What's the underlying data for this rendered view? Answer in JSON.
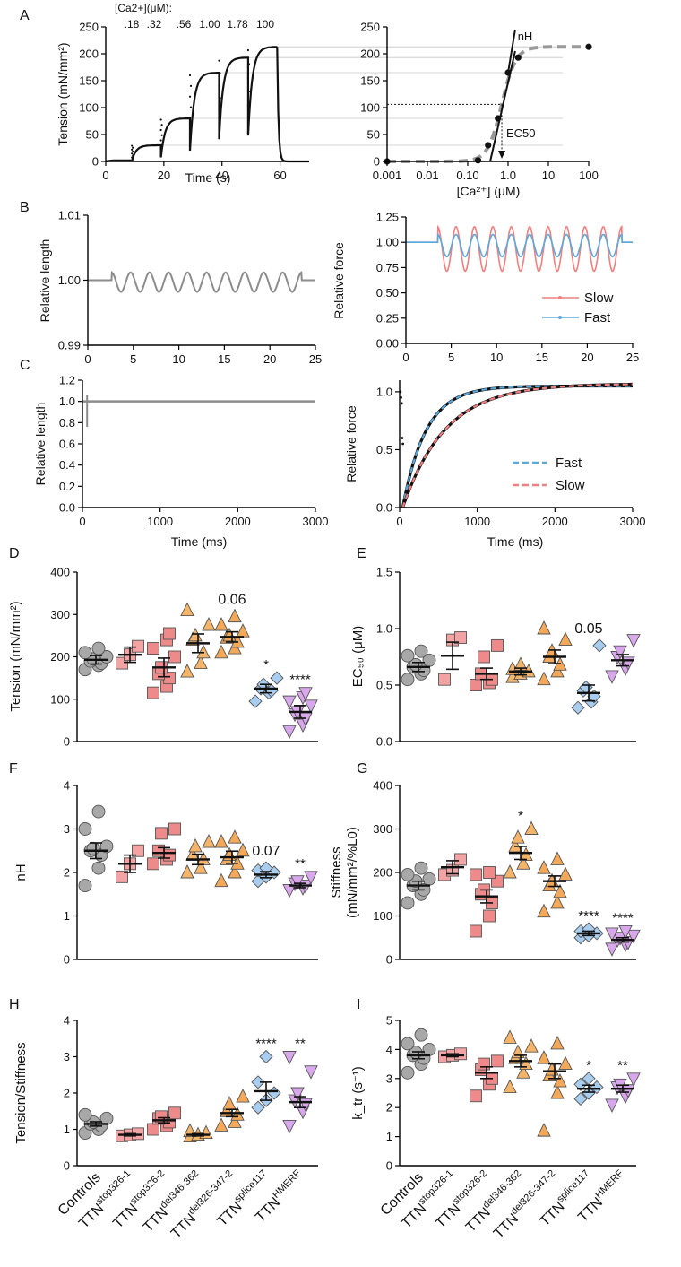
{
  "figure": {
    "panel_letters": [
      "A",
      "B",
      "C",
      "D",
      "E",
      "F",
      "G",
      "H",
      "I"
    ],
    "colors": {
      "control": "#a8a8a8",
      "stop1": "#f2a3a3",
      "stop2": "#ee8a8a",
      "del346": "#f4b56b",
      "del326": "#f3a85a",
      "splice": "#a9cdee",
      "hmerf": "#d9a8ec",
      "slow": "#f07f7f",
      "fast": "#5aa9dc",
      "gray_trace": "#8c8c8c",
      "ref_line": "#c6c6c6"
    }
  },
  "chart_data": [
    {
      "id": "A-left",
      "type": "line",
      "title": "",
      "xlabel": "Time (s)",
      "ylabel": "Tension (mN/mm²)",
      "xlim": [
        0,
        70
      ],
      "ylim": [
        0,
        250
      ],
      "xticks": [
        "0",
        "20",
        "40",
        "60"
      ],
      "yticks": [
        "0",
        "50",
        "100",
        "150",
        "200",
        "250"
      ],
      "annotation_header": "[Ca2+](μM):",
      "annotation_ca": [
        ".18",
        ".32",
        ".56",
        "1.00",
        "1.78",
        "100"
      ],
      "steps": [
        {
          "x0": 0,
          "x1": 9,
          "level": 2
        },
        {
          "x0": 9,
          "x1": 19,
          "level": 30
        },
        {
          "x0": 19,
          "x1": 29,
          "level": 80
        },
        {
          "x0": 29,
          "x1": 39,
          "level": 165
        },
        {
          "x0": 39,
          "x1": 49,
          "level": 193
        },
        {
          "x0": 49,
          "x1": 59,
          "level": 213
        },
        {
          "x0": 59,
          "x1": 70,
          "level": 0
        }
      ]
    },
    {
      "id": "A-right",
      "type": "line",
      "xlabel": "[Ca²⁺] (μM)",
      "ylabel": "",
      "xscale": "log",
      "xlim": [
        0.001,
        100
      ],
      "ylim": [
        0,
        250
      ],
      "xticks": [
        "0.001",
        "0.01",
        "0.10",
        "1.0",
        "10",
        "100"
      ],
      "yticks": [
        "0",
        "50",
        "100",
        "150",
        "200",
        "250"
      ],
      "points": [
        {
          "x": 0.001,
          "y": 0
        },
        {
          "x": 0.18,
          "y": 2
        },
        {
          "x": 0.32,
          "y": 30
        },
        {
          "x": 0.56,
          "y": 80
        },
        {
          "x": 1.0,
          "y": 165
        },
        {
          "x": 1.78,
          "y": 193
        },
        {
          "x": 100,
          "y": 213
        }
      ],
      "labels": {
        "nh": "nH",
        "ec50": "EC50"
      },
      "ec50": 0.7,
      "half_max": 106
    },
    {
      "id": "B-left",
      "type": "line",
      "xlabel": "",
      "ylabel": "Relative length",
      "xlim": [
        0,
        25
      ],
      "ylim": [
        0.99,
        1.01
      ],
      "xticks": [
        "0",
        "5",
        "10",
        "15",
        "20",
        "25"
      ],
      "yticks": [
        "0.99",
        "1.00",
        "1.01"
      ],
      "sine": {
        "start": 2.6,
        "end": 23.5,
        "cycles": 10,
        "amplitude": 0.0015,
        "base": 1.0
      }
    },
    {
      "id": "B-right",
      "type": "line",
      "xlabel": "",
      "ylabel": "Relative force",
      "xlim": [
        0,
        25
      ],
      "ylim": [
        0,
        1.25
      ],
      "xticks": [
        "0",
        "5",
        "10",
        "15",
        "20",
        "25"
      ],
      "yticks": [
        "0.00",
        "0.25",
        "0.50",
        "0.75",
        "1.00",
        "1.25"
      ],
      "series": [
        {
          "name": "Slow",
          "amplitude": 0.22,
          "base": 1.0
        },
        {
          "name": "Fast",
          "amplitude": 0.11,
          "base": 1.0
        }
      ],
      "sine": {
        "start": 3.5,
        "end": 23.8,
        "cycles": 10
      }
    },
    {
      "id": "C-left",
      "type": "line",
      "xlabel": "Time (ms)",
      "ylabel": "Relative length",
      "xlim": [
        0,
        3000
      ],
      "ylim": [
        0,
        1.2
      ],
      "xticks": [
        "0",
        "1000",
        "2000",
        "3000"
      ],
      "yticks": [
        "0.0",
        "0.2",
        "0.4",
        "0.6",
        "0.8",
        "1.0",
        "1.2"
      ],
      "level": 1.0,
      "dip": 0.76
    },
    {
      "id": "C-right",
      "type": "line",
      "xlabel": "Time (ms)",
      "ylabel": "Relative force",
      "xlim": [
        0,
        3000
      ],
      "ylim": [
        0,
        1.1
      ],
      "xticks": [
        "0",
        "1000",
        "2000",
        "3000"
      ],
      "yticks": [
        "0.0",
        "0.5",
        "1.0"
      ],
      "series": [
        {
          "name": "Fast",
          "tau_ms": 300,
          "plateau": 1.05
        },
        {
          "name": "Slow",
          "tau_ms": 550,
          "plateau": 1.07
        }
      ]
    }
  ],
  "groups": {
    "labels": [
      {
        "base": "Controls",
        "sup": ""
      },
      {
        "base": "TTN",
        "sup": "stop326-1"
      },
      {
        "base": "TTN",
        "sup": "stop326-2"
      },
      {
        "base": "TTN",
        "sup": "del346-362"
      },
      {
        "base": "TTN",
        "sup": "del326-347-2"
      },
      {
        "base": "TTN",
        "sup": "splice117"
      },
      {
        "base": "TTN",
        "sup": "HMERF"
      }
    ],
    "markers": [
      "circle",
      "square",
      "square",
      "triangle",
      "triangle",
      "diamond",
      "triangle-down"
    ]
  },
  "scatter_panels": [
    {
      "id": "D",
      "ylabel": "Tension (mN/mm²)",
      "ylim": [
        0,
        400
      ],
      "yticks": [
        "0",
        "100",
        "200",
        "300",
        "400"
      ],
      "means": [
        193,
        205,
        175,
        232,
        247,
        125,
        70
      ],
      "sems": [
        10,
        18,
        22,
        22,
        12,
        10,
        15
      ],
      "points": [
        [
          170,
          180,
          185,
          190,
          195,
          200,
          210,
          220
        ],
        [
          185,
          205,
          225
        ],
        [
          115,
          130,
          150,
          160,
          175,
          200,
          220,
          240,
          255
        ],
        [
          165,
          185,
          210,
          240,
          250,
          275,
          310
        ],
        [
          210,
          220,
          235,
          245,
          250,
          260,
          275,
          295
        ],
        [
          95,
          115,
          120,
          125,
          135,
          150
        ],
        [
          25,
          40,
          55,
          65,
          70,
          85,
          95,
          105,
          115
        ]
      ],
      "annotations": [
        "",
        "",
        "",
        "",
        "0.06",
        "*",
        "****"
      ]
    },
    {
      "id": "E",
      "ylabel": "EC₅₀ (μM)",
      "ylim": [
        0,
        1.5
      ],
      "yticks": [
        "0.0",
        "0.5",
        "1.0",
        "1.5"
      ],
      "means": [
        0.66,
        0.76,
        0.6,
        0.62,
        0.75,
        0.43,
        0.72
      ],
      "sems": [
        0.04,
        0.12,
        0.05,
        0.03,
        0.06,
        0.07,
        0.05
      ],
      "points": [
        [
          0.55,
          0.6,
          0.63,
          0.66,
          0.68,
          0.72,
          0.76,
          0.8
        ],
        [
          0.55,
          0.9,
          0.92
        ],
        [
          0.5,
          0.52,
          0.55,
          0.6,
          0.75,
          0.85
        ],
        [
          0.57,
          0.6,
          0.62,
          0.64,
          0.68
        ],
        [
          0.55,
          0.62,
          0.68,
          0.75,
          0.8,
          0.9,
          1.0
        ],
        [
          0.3,
          0.35,
          0.4,
          0.45,
          0.48,
          0.85
        ],
        [
          0.58,
          0.65,
          0.7,
          0.75,
          0.8,
          0.9
        ]
      ],
      "annotations": [
        "",
        "",
        "",
        "",
        "",
        "0.05",
        ""
      ]
    },
    {
      "id": "F",
      "ylabel": "nH",
      "ylim": [
        0,
        4
      ],
      "yticks": [
        "0",
        "1",
        "2",
        "3",
        "4"
      ],
      "means": [
        2.5,
        2.2,
        2.45,
        2.3,
        2.35,
        1.95,
        1.7
      ],
      "sems": [
        0.18,
        0.2,
        0.12,
        0.12,
        0.14,
        0.07,
        0.05
      ],
      "points": [
        [
          1.7,
          2.1,
          2.4,
          2.5,
          2.55,
          2.6,
          3.0,
          3.4
        ],
        [
          1.9,
          2.2,
          2.5
        ],
        [
          2.2,
          2.3,
          2.4,
          2.5,
          2.9,
          3.0
        ],
        [
          2.0,
          2.1,
          2.3,
          2.4,
          2.6,
          2.7
        ],
        [
          1.8,
          2.0,
          2.2,
          2.3,
          2.4,
          2.5,
          2.7,
          2.8
        ],
        [
          1.8,
          1.9,
          2.0,
          2.05,
          2.1
        ],
        [
          1.6,
          1.65,
          1.7,
          1.75,
          1.8,
          1.9
        ]
      ],
      "annotations": [
        "",
        "",
        "",
        "",
        "",
        "0.07",
        "**"
      ]
    },
    {
      "id": "G",
      "ylabel": "Stiffness (mN/mm²/%L0)",
      "ylim": [
        0,
        400
      ],
      "yticks": [
        "0",
        "100",
        "200",
        "300",
        "400"
      ],
      "means": [
        170,
        212,
        145,
        245,
        180,
        60,
        45
      ],
      "sems": [
        10,
        15,
        15,
        15,
        12,
        5,
        5
      ],
      "points": [
        [
          130,
          150,
          160,
          170,
          180,
          185,
          195,
          210
        ],
        [
          195,
          205,
          230
        ],
        [
          65,
          100,
          130,
          150,
          160,
          180,
          195,
          200
        ],
        [
          200,
          220,
          240,
          260,
          280,
          300
        ],
        [
          110,
          130,
          155,
          170,
          180,
          195,
          210,
          230
        ],
        [
          50,
          55,
          60,
          65,
          70
        ],
        [
          25,
          35,
          40,
          45,
          50,
          55,
          60,
          65
        ]
      ],
      "annotations": [
        "",
        "",
        "",
        "*",
        "",
        "****",
        "****"
      ]
    },
    {
      "id": "H",
      "ylabel": "Tension/Stiffness",
      "ylim": [
        0,
        4
      ],
      "yticks": [
        "0",
        "1",
        "2",
        "3",
        "4"
      ],
      "means": [
        1.15,
        0.85,
        1.25,
        0.85,
        1.45,
        2.05,
        1.75
      ],
      "sems": [
        0.06,
        0.03,
        0.07,
        0.03,
        0.1,
        0.25,
        0.15
      ],
      "points": [
        [
          0.9,
          1.0,
          1.1,
          1.15,
          1.2,
          1.3,
          1.4
        ],
        [
          0.82,
          0.85,
          0.88
        ],
        [
          1.0,
          1.1,
          1.2,
          1.3,
          1.35,
          1.45
        ],
        [
          0.8,
          0.85,
          0.9,
          0.95
        ],
        [
          1.1,
          1.2,
          1.4,
          1.5,
          1.7,
          1.9
        ],
        [
          1.6,
          1.8,
          2.0,
          2.3,
          3.0
        ],
        [
          1.1,
          1.5,
          1.7,
          1.8,
          2.0,
          2.6,
          3.0
        ]
      ],
      "annotations": [
        "",
        "",
        "",
        "",
        "",
        "****",
        "**"
      ]
    },
    {
      "id": "I",
      "ylabel": "k_tr (s⁻¹)",
      "ylim": [
        0,
        5
      ],
      "yticks": [
        "0",
        "1",
        "2",
        "3",
        "4",
        "5"
      ],
      "means": [
        3.8,
        3.8,
        3.2,
        3.6,
        3.25,
        2.65,
        2.65
      ],
      "sems": [
        0.12,
        0.05,
        0.2,
        0.2,
        0.25,
        0.12,
        0.12
      ],
      "points": [
        [
          3.2,
          3.5,
          3.7,
          3.8,
          3.9,
          4.0,
          4.2,
          4.5
        ],
        [
          3.75,
          3.8,
          3.85
        ],
        [
          2.4,
          2.8,
          3.0,
          3.3,
          3.5,
          3.6
        ],
        [
          2.7,
          3.2,
          3.5,
          3.7,
          3.9,
          4.1,
          4.4
        ],
        [
          1.2,
          2.5,
          2.9,
          3.1,
          3.3,
          3.5,
          3.7,
          4.2
        ],
        [
          2.3,
          2.5,
          2.7,
          2.8,
          3.0
        ],
        [
          2.1,
          2.4,
          2.6,
          2.7,
          2.8,
          3.0
        ]
      ],
      "annotations": [
        "",
        "",
        "",
        "",
        "",
        "*",
        "**"
      ]
    }
  ]
}
